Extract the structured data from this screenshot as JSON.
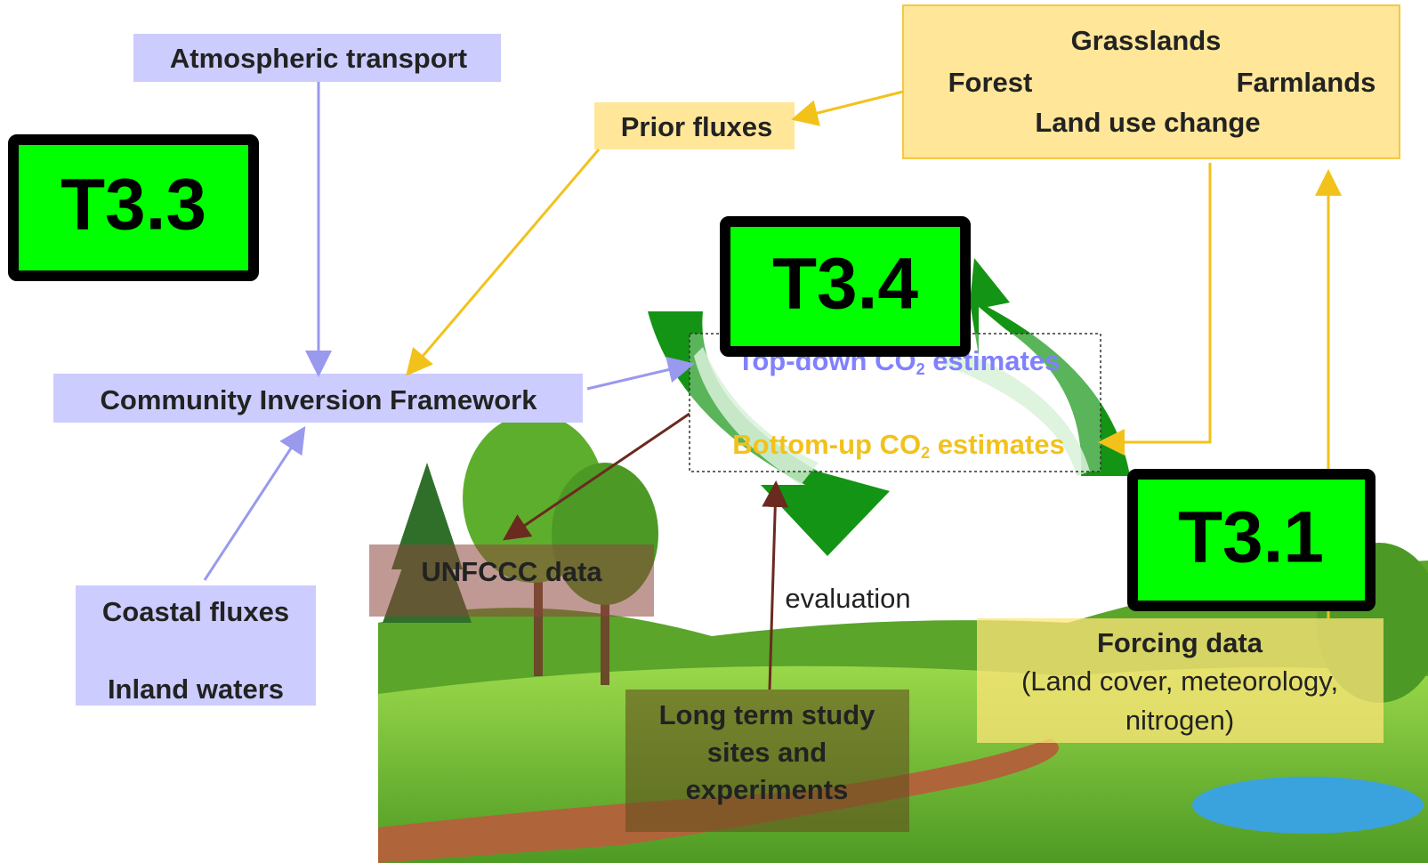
{
  "labels": {
    "atmospheric_transport": "Atmospheric transport",
    "prior_fluxes": "Prior fluxes",
    "land": {
      "grasslands": "Grasslands",
      "forest": "Forest",
      "farmlands": "Farmlands",
      "land_use_change": "Land use change"
    },
    "community_inversion_framework": "Community Inversion Framework",
    "top_down": {
      "before": "Top-down CO",
      "sub": "2",
      "after": " estimates"
    },
    "bottom_up": {
      "before": "Bottom-up CO",
      "sub": "2",
      "after": " estimates"
    },
    "unfccc": "UNFCCC data",
    "evaluation": "evaluation",
    "coastal_fluxes": "Coastal fluxes",
    "inland_waters": "Inland waters",
    "long_term": [
      "Long term study",
      "sites and",
      "experiments"
    ],
    "forcing_title": "Forcing data",
    "forcing_detail": [
      "(Land cover, meteorology,",
      "nitrogen)"
    ]
  },
  "tasks": [
    "T3.3",
    "T3.4",
    "T3.1"
  ]
}
